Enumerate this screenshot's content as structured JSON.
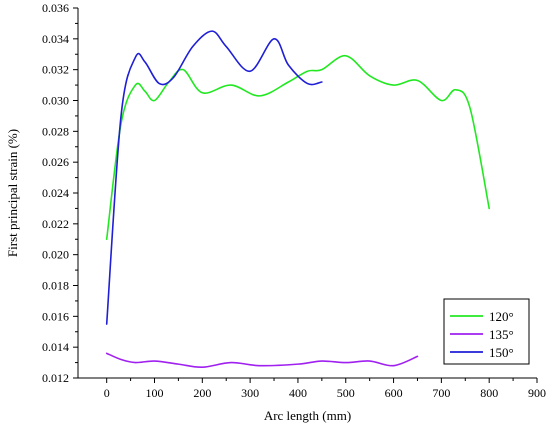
{
  "chart_data": {
    "type": "line",
    "xlabel": "Arc length (mm)",
    "ylabel": "First principal strain (%)",
    "xlim": [
      -60,
      900
    ],
    "ylim": [
      0.012,
      0.036
    ],
    "x_ticks": [
      0,
      100,
      200,
      300,
      400,
      500,
      600,
      700,
      800,
      900
    ],
    "y_ticks": [
      0.012,
      0.014,
      0.016,
      0.018,
      0.02,
      0.022,
      0.024,
      0.026,
      0.028,
      0.03,
      0.032,
      0.034,
      0.036
    ],
    "x_tick_labels": [
      "0",
      "100",
      "200",
      "300",
      "400",
      "500",
      "600",
      "700",
      "800",
      "900"
    ],
    "y_tick_labels": [
      "0.012",
      "0.014",
      "0.016",
      "0.018",
      "0.020",
      "0.022",
      "0.024",
      "0.026",
      "0.028",
      "0.030",
      "0.032",
      "0.034",
      "0.036"
    ],
    "grid": false,
    "legend_position": "bottom-right",
    "series": [
      {
        "name": "120°",
        "color": "#22e822",
        "x": [
          0,
          30,
          60,
          80,
          100,
          130,
          160,
          200,
          260,
          320,
          380,
          420,
          450,
          500,
          550,
          600,
          650,
          700,
          730,
          760,
          800
        ],
        "y": [
          0.021,
          0.0285,
          0.031,
          0.0306,
          0.03,
          0.0312,
          0.032,
          0.0305,
          0.031,
          0.0303,
          0.0312,
          0.0319,
          0.032,
          0.0329,
          0.0316,
          0.031,
          0.0313,
          0.03,
          0.0307,
          0.0295,
          0.023
        ]
      },
      {
        "name": "135°",
        "color": "#a020f0",
        "x": [
          0,
          30,
          60,
          100,
          150,
          200,
          260,
          320,
          400,
          450,
          500,
          550,
          600,
          650
        ],
        "y": [
          0.0136,
          0.0132,
          0.013,
          0.0131,
          0.0129,
          0.0127,
          0.013,
          0.0128,
          0.0129,
          0.0131,
          0.013,
          0.0131,
          0.0128,
          0.0134
        ]
      },
      {
        "name": "150°",
        "color": "#1f1fd6",
        "x": [
          0,
          30,
          60,
          80,
          110,
          140,
          180,
          220,
          250,
          300,
          350,
          380,
          420,
          450
        ],
        "y": [
          0.0155,
          0.029,
          0.0328,
          0.0325,
          0.0311,
          0.0315,
          0.0335,
          0.0345,
          0.0335,
          0.0319,
          0.034,
          0.0323,
          0.0311,
          0.0312
        ]
      }
    ]
  }
}
